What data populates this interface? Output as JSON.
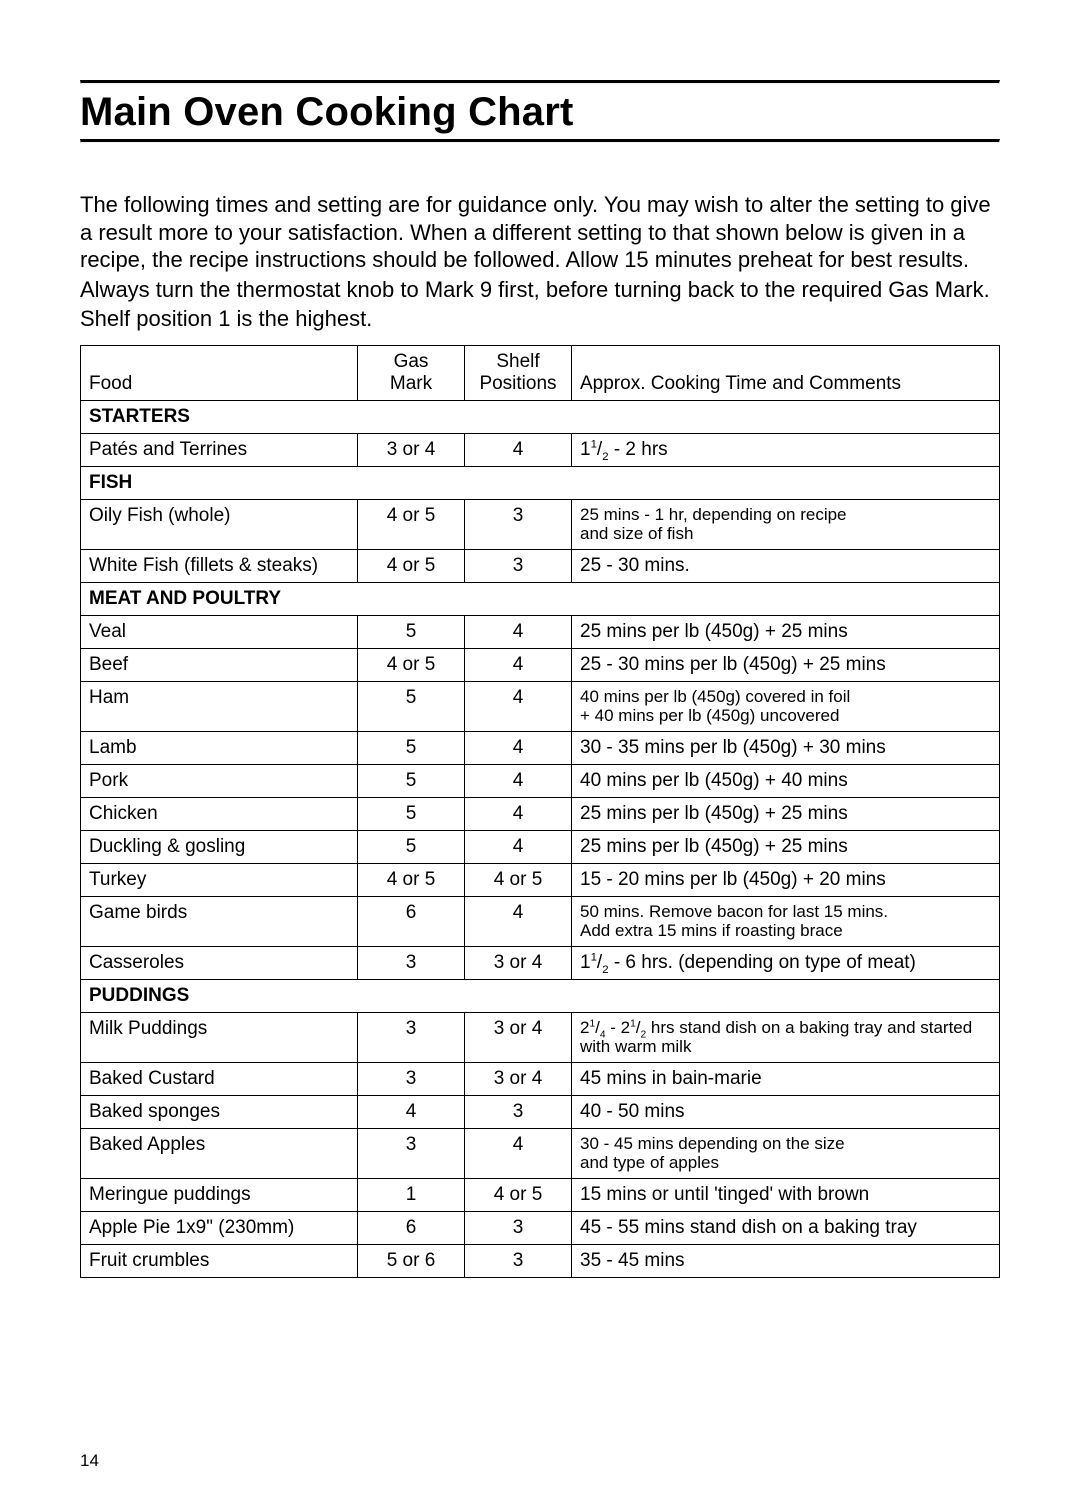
{
  "page_number": "14",
  "title": "Main Oven Cooking Chart",
  "intro_paragraphs": [
    "The following times and setting are for guidance only. You may wish to alter the setting to give a result more to your satisfaction. When a different setting to that shown below is given in a recipe, the recipe instructions should be followed. Allow 15 minutes preheat for best results.",
    "Always turn the thermostat knob to Mark 9 first, before turning back to the required Gas Mark.",
    "Shelf position 1 is the highest."
  ],
  "columns": {
    "food": "Food",
    "gas_line1": "Gas",
    "gas_line2": "Mark",
    "shelf_line1": "Shelf",
    "shelf_line2": "Positions",
    "notes": "Approx. Cooking Time and Comments"
  },
  "rows": [
    {
      "type": "section",
      "label": "STARTERS"
    },
    {
      "type": "data",
      "food": "Patés and Terrines",
      "gas": "3 or 4",
      "shelf": "4",
      "notes_html": "1<sup>1</sup>/<sub>2</sub> - 2 hrs",
      "small": false
    },
    {
      "type": "section",
      "label": "FISH"
    },
    {
      "type": "data",
      "food": "Oily Fish (whole)",
      "gas": "4 or 5",
      "shelf": "3",
      "notes_html": "25 mins - 1 hr, depending on recipe<br>and size of fish",
      "small": true
    },
    {
      "type": "data",
      "food": "White Fish (fillets & steaks)",
      "gas": "4 or 5",
      "shelf": "3",
      "notes_html": "25 - 30 mins.",
      "small": false
    },
    {
      "type": "section",
      "label": "MEAT AND POULTRY"
    },
    {
      "type": "data",
      "food": "Veal",
      "gas": "5",
      "shelf": "4",
      "notes_html": "25 mins per lb (450g) + 25 mins",
      "small": false
    },
    {
      "type": "data",
      "food": "Beef",
      "gas": "4 or 5",
      "shelf": "4",
      "notes_html": "25 - 30 mins per lb (450g) + 25 mins",
      "small": false
    },
    {
      "type": "data",
      "food": "Ham",
      "gas": "5",
      "shelf": "4",
      "notes_html": "40 mins per lb (450g) covered in foil<br>+ 40 mins per lb (450g) uncovered",
      "small": true
    },
    {
      "type": "data",
      "food": "Lamb",
      "gas": "5",
      "shelf": "4",
      "notes_html": "30 - 35 mins per lb (450g) + 30 mins",
      "small": false
    },
    {
      "type": "data",
      "food": "Pork",
      "gas": "5",
      "shelf": "4",
      "notes_html": "40 mins per lb (450g) + 40 mins",
      "small": false
    },
    {
      "type": "data",
      "food": "Chicken",
      "gas": "5",
      "shelf": "4",
      "notes_html": "25 mins per lb (450g) + 25 mins",
      "small": false
    },
    {
      "type": "data",
      "food": "Duckling & gosling",
      "gas": "5",
      "shelf": "4",
      "notes_html": "25 mins per lb (450g) + 25 mins",
      "small": false
    },
    {
      "type": "data",
      "food": "Turkey",
      "gas": "4 or 5",
      "shelf": "4 or 5",
      "notes_html": "15 - 20 mins per lb (450g) + 20 mins",
      "small": false
    },
    {
      "type": "data",
      "food": "Game birds",
      "gas": "6",
      "shelf": "4",
      "notes_html": "50 mins. Remove bacon for last 15 mins.<br>Add extra 15 mins if roasting brace",
      "small": true
    },
    {
      "type": "data",
      "food": "Casseroles",
      "gas": "3",
      "shelf": "3 or 4",
      "notes_html": "1<sup>1</sup>/<sub>2</sub> - 6 hrs. (depending on type of meat)",
      "small": false
    },
    {
      "type": "section",
      "label": "PUDDINGS"
    },
    {
      "type": "data",
      "food": "Milk Puddings",
      "gas": "3",
      "shelf": "3 or 4",
      "notes_html": "2<sup>1</sup>/<sub>4</sub> - 2<sup>1</sup>/<sub>2</sub> hrs stand dish on a baking tray and started with warm milk",
      "small": true
    },
    {
      "type": "data",
      "food": "Baked Custard",
      "gas": "3",
      "shelf": "3 or 4",
      "notes_html": "45 mins in bain-marie",
      "small": false
    },
    {
      "type": "data",
      "food": "Baked sponges",
      "gas": "4",
      "shelf": "3",
      "notes_html": "40 - 50 mins",
      "small": false
    },
    {
      "type": "data",
      "food": "Baked Apples",
      "gas": "3",
      "shelf": "4",
      "notes_html": "30 - 45 mins depending on the size<br>and type of apples",
      "small": true
    },
    {
      "type": "data",
      "food": "Meringue puddings",
      "gas": "1",
      "shelf": "4 or 5",
      "notes_html": "15 mins or until 'tinged' with brown",
      "small": false
    },
    {
      "type": "data",
      "food": "Apple Pie 1x9\" (230mm)",
      "gas": "6",
      "shelf": "3",
      "notes_html": "45 - 55 mins stand dish on a baking tray",
      "small": false
    },
    {
      "type": "data",
      "food": "Fruit crumbles",
      "gas": "5 or 6",
      "shelf": "3",
      "notes_html": "35 - 45 mins",
      "small": false
    }
  ]
}
